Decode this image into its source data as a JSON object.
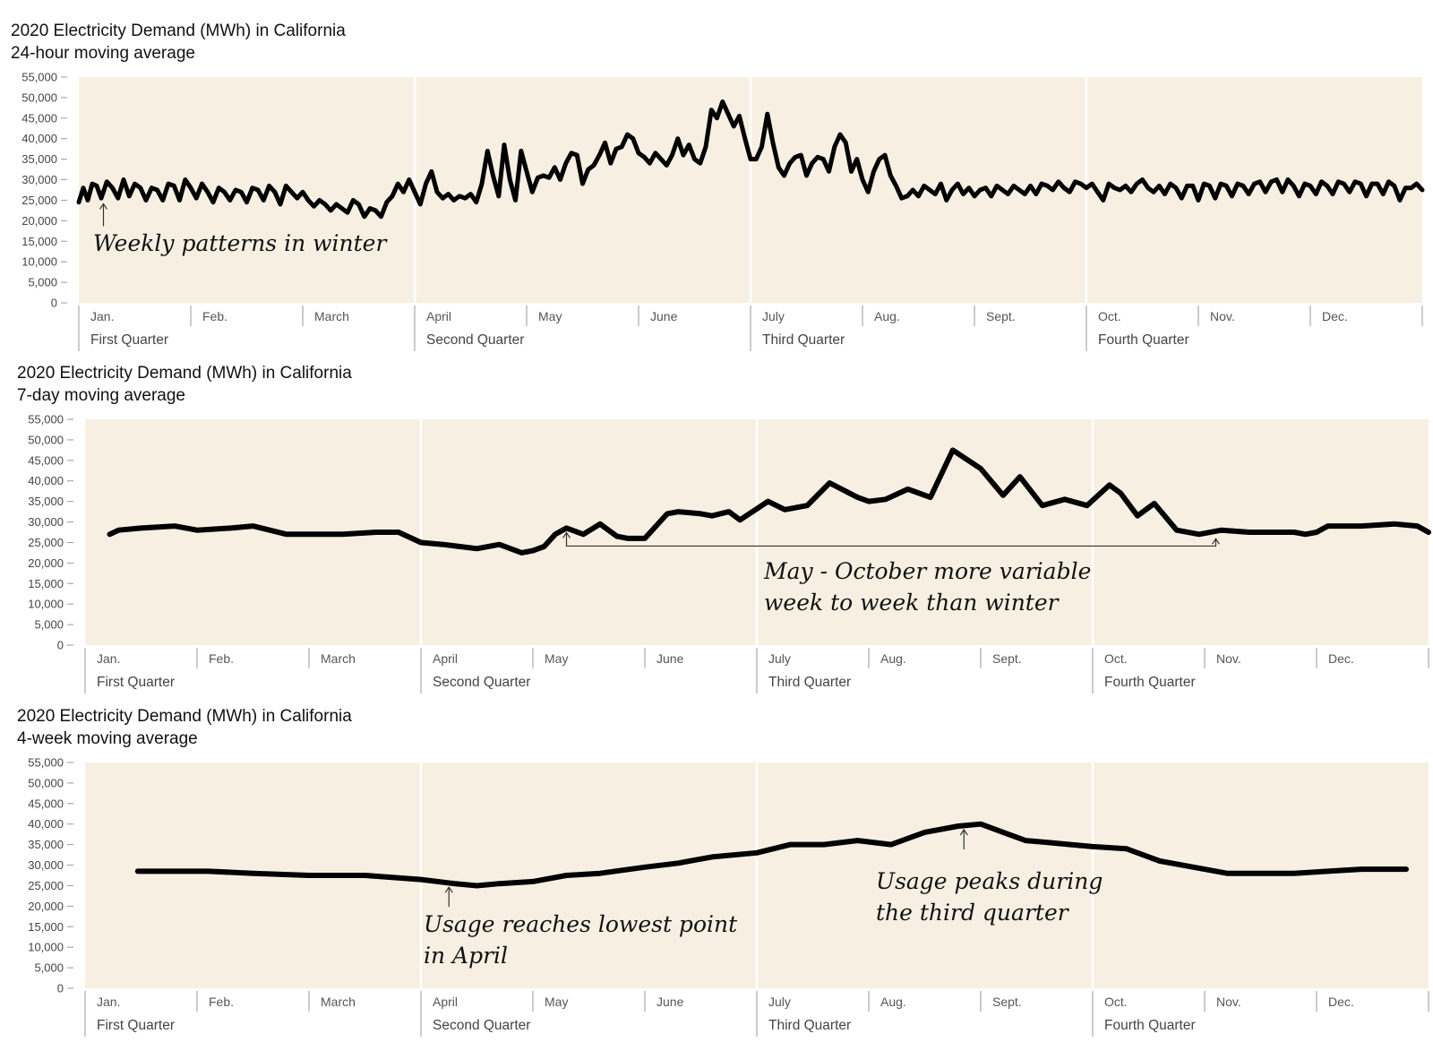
{
  "colors": {
    "panel_background": "#f7f0e2",
    "line": "#000000",
    "quarter_divider": "#ffffff",
    "axis_tick": "#999999"
  },
  "chart_data": [
    {
      "type": "line",
      "title": "2020 Electricity Demand (MWh) in California",
      "subtitle": "24-hour moving average",
      "xlabel": "",
      "ylabel": "",
      "x_unit": "month of year (1 = Jan. 1, 13 = end of Dec.)",
      "xlim": [
        1,
        13
      ],
      "ylim": [
        0,
        55000
      ],
      "y_ticks": [
        "0",
        "5,000",
        "10,000",
        "15,000",
        "20,000",
        "25,000",
        "30,000",
        "35,000",
        "40,000",
        "45,000",
        "50,000",
        "55,000"
      ],
      "month_labels": [
        "Jan.",
        "Feb.",
        "March",
        "April",
        "May",
        "June",
        "July",
        "Aug.",
        "Sept.",
        "Oct.",
        "Nov.",
        "Dec."
      ],
      "quarter_labels": [
        "First Quarter",
        "Second Quarter",
        "Third Quarter",
        "Fourth Quarter"
      ],
      "grid": false,
      "legend": "none",
      "series": [
        {
          "x": [
            1.0,
            1.04,
            1.08,
            1.12,
            1.16,
            1.2,
            1.25,
            1.3,
            1.35,
            1.4,
            1.45,
            1.5,
            1.55,
            1.6,
            1.65,
            1.7,
            1.75,
            1.8,
            1.85,
            1.9,
            1.95,
            2.0,
            2.05,
            2.1,
            2.15,
            2.2,
            2.25,
            2.3,
            2.35,
            2.4,
            2.45,
            2.5,
            2.55,
            2.6,
            2.65,
            2.7,
            2.75,
            2.8,
            2.85,
            2.9,
            2.95,
            3.0,
            3.05,
            3.1,
            3.15,
            3.2,
            3.25,
            3.3,
            3.35,
            3.4,
            3.45,
            3.5,
            3.55,
            3.6,
            3.65,
            3.7,
            3.75,
            3.8,
            3.85,
            3.9,
            3.95,
            4.0,
            4.05,
            4.1,
            4.15,
            4.2,
            4.25,
            4.3,
            4.35,
            4.4,
            4.45,
            4.5,
            4.55,
            4.6,
            4.65,
            4.7,
            4.75,
            4.8,
            4.85,
            4.9,
            4.95,
            5.0,
            5.05,
            5.1,
            5.15,
            5.2,
            5.25,
            5.3,
            5.35,
            5.4,
            5.45,
            5.5,
            5.55,
            5.6,
            5.65,
            5.7,
            5.75,
            5.8,
            5.85,
            5.9,
            5.95,
            6.0,
            6.05,
            6.1,
            6.15,
            6.2,
            6.25,
            6.3,
            6.35,
            6.4,
            6.45,
            6.5,
            6.55,
            6.6,
            6.65,
            6.7,
            6.75,
            6.8,
            6.85,
            6.9,
            6.95,
            7.0,
            7.05,
            7.1,
            7.15,
            7.2,
            7.25,
            7.3,
            7.35,
            7.4,
            7.45,
            7.5,
            7.55,
            7.6,
            7.65,
            7.7,
            7.75,
            7.8,
            7.85,
            7.9,
            7.95,
            8.0,
            8.05,
            8.1,
            8.15,
            8.2,
            8.25,
            8.3,
            8.35,
            8.4,
            8.45,
            8.5,
            8.55,
            8.6,
            8.65,
            8.7,
            8.75,
            8.8,
            8.85,
            8.9,
            8.95,
            9.0,
            9.05,
            9.1,
            9.15,
            9.2,
            9.25,
            9.3,
            9.35,
            9.4,
            9.45,
            9.5,
            9.55,
            9.6,
            9.65,
            9.7,
            9.75,
            9.8,
            9.85,
            9.9,
            9.95,
            10.0,
            10.05,
            10.1,
            10.15,
            10.2,
            10.25,
            10.3,
            10.35,
            10.4,
            10.45,
            10.5,
            10.55,
            10.6,
            10.65,
            10.7,
            10.75,
            10.8,
            10.85,
            10.9,
            10.95,
            11.0,
            11.05,
            11.1,
            11.15,
            11.2,
            11.25,
            11.3,
            11.35,
            11.4,
            11.45,
            11.5,
            11.55,
            11.6,
            11.65,
            11.7,
            11.75,
            11.8,
            11.85,
            11.9,
            11.95,
            12.0,
            12.05,
            12.1,
            12.15,
            12.2,
            12.25,
            12.3,
            12.35,
            12.4,
            12.45,
            12.5,
            12.55,
            12.6,
            12.65,
            12.7,
            12.75,
            12.8,
            12.85,
            12.9,
            12.95,
            13.0
          ],
          "values": [
            24500,
            28000,
            25000,
            29000,
            28500,
            25500,
            29500,
            28000,
            25500,
            30000,
            26000,
            29000,
            28000,
            25000,
            28000,
            27500,
            25000,
            29000,
            28500,
            25000,
            30000,
            28000,
            25500,
            29000,
            27000,
            24500,
            28000,
            27000,
            25000,
            27500,
            27000,
            24500,
            28000,
            27500,
            25000,
            28500,
            27000,
            24000,
            28500,
            27000,
            25500,
            27000,
            25000,
            23500,
            25000,
            24000,
            22500,
            24000,
            23000,
            22000,
            25000,
            24000,
            21000,
            23000,
            22500,
            21000,
            24500,
            26000,
            29000,
            27000,
            30000,
            27000,
            24000,
            29000,
            32000,
            27000,
            25500,
            26500,
            25000,
            26000,
            25500,
            26500,
            24500,
            29000,
            37000,
            31000,
            26000,
            38500,
            30000,
            25000,
            37000,
            32000,
            27000,
            30500,
            31000,
            30500,
            33000,
            30000,
            34000,
            36500,
            36000,
            29000,
            32500,
            33500,
            36000,
            39000,
            34000,
            37500,
            38000,
            41000,
            40000,
            36500,
            35500,
            34000,
            36500,
            35000,
            33500,
            36000,
            40000,
            36000,
            38500,
            35000,
            34000,
            38000,
            47000,
            45000,
            49000,
            46000,
            43000,
            45500,
            40000,
            35000,
            35000,
            38000,
            46000,
            39000,
            33000,
            31000,
            34000,
            35500,
            36000,
            31000,
            34000,
            35500,
            35000,
            32000,
            38000,
            41000,
            39000,
            32000,
            35000,
            30000,
            27000,
            32000,
            35000,
            36000,
            31000,
            28500,
            25500,
            26000,
            27500,
            26000,
            28500,
            27500,
            26500,
            29000,
            25000,
            27500,
            29000,
            26500,
            28000,
            26000,
            27500,
            28000,
            26000,
            28500,
            27500,
            26500,
            28500,
            27500,
            26500,
            28500,
            26500,
            29000,
            28500,
            27500,
            29500,
            28000,
            27000,
            29500,
            29000,
            28000,
            29000,
            27000,
            25000,
            29000,
            28000,
            27500,
            28500,
            27000,
            29000,
            30000,
            28000,
            27000,
            28500,
            26500,
            29000,
            28000,
            25500,
            28500,
            28500,
            25000,
            29000,
            28500,
            25500,
            29000,
            28500,
            26000,
            29000,
            28500,
            26500,
            29000,
            29500,
            27000,
            29500,
            30000,
            27000,
            30000,
            28500,
            26000,
            29000,
            28500,
            26500,
            29500,
            28500,
            26500,
            29500,
            29000,
            27000,
            29500,
            29000,
            26000,
            29000,
            29000,
            26500,
            29500,
            28500,
            25000,
            28000,
            28000,
            29000,
            27500
          ]
        }
      ],
      "annotations": [
        {
          "text": "Weekly patterns in winter",
          "points_to": [
            1.22,
            25000
          ]
        }
      ]
    },
    {
      "type": "line",
      "title": "2020 Electricity Demand (MWh) in California",
      "subtitle": "7-day moving average",
      "xlabel": "",
      "ylabel": "",
      "x_unit": "month of year (1 = Jan. 1, 13 = end of Dec.)",
      "xlim": [
        1,
        13
      ],
      "ylim": [
        0,
        55000
      ],
      "y_ticks": [
        "0",
        "5,000",
        "10,000",
        "15,000",
        "20,000",
        "25,000",
        "30,000",
        "35,000",
        "40,000",
        "45,000",
        "50,000",
        "55,000"
      ],
      "month_labels": [
        "Jan.",
        "Feb.",
        "March",
        "April",
        "May",
        "June",
        "July",
        "Aug.",
        "Sept.",
        "Oct.",
        "Nov.",
        "Dec."
      ],
      "quarter_labels": [
        "First Quarter",
        "Second Quarter",
        "Third Quarter",
        "Fourth Quarter"
      ],
      "grid": false,
      "legend": "none",
      "series": [
        {
          "x": [
            1.22,
            1.3,
            1.5,
            1.8,
            2.0,
            2.3,
            2.5,
            2.8,
            3.0,
            3.3,
            3.6,
            3.8,
            4.0,
            4.2,
            4.5,
            4.7,
            4.9,
            5.0,
            5.1,
            5.2,
            5.3,
            5.45,
            5.6,
            5.75,
            5.85,
            6.0,
            6.2,
            6.3,
            6.5,
            6.6,
            6.75,
            6.85,
            7.1,
            7.25,
            7.45,
            7.65,
            7.9,
            8.0,
            8.15,
            8.35,
            8.55,
            8.75,
            9.0,
            9.2,
            9.35,
            9.55,
            9.75,
            9.95,
            10.15,
            10.25,
            10.4,
            10.55,
            10.75,
            10.95,
            11.15,
            11.4,
            11.6,
            11.8,
            11.9,
            12.0,
            12.1,
            12.4,
            12.7,
            12.9,
            13.0
          ],
          "values": [
            27000,
            28000,
            28500,
            29000,
            28000,
            28500,
            29000,
            27000,
            27000,
            27000,
            27500,
            27500,
            25000,
            24500,
            23500,
            24500,
            22500,
            23000,
            24000,
            27000,
            28500,
            27000,
            29500,
            26500,
            26000,
            26000,
            32000,
            32500,
            32000,
            31500,
            32500,
            30500,
            35000,
            33000,
            34000,
            39500,
            36000,
            35000,
            35500,
            38000,
            36000,
            47500,
            43000,
            36500,
            41000,
            34000,
            35500,
            34000,
            39000,
            37000,
            31500,
            34500,
            28000,
            27000,
            28000,
            27500,
            27500,
            27500,
            27000,
            27500,
            29000,
            29000,
            29500,
            29000,
            27500
          ]
        }
      ],
      "annotations": [
        {
          "text": "May - October more variable week to week than winter",
          "points_to": [
            [
              5.3,
              28500
            ],
            [
              11.1,
              27000
            ]
          ]
        }
      ]
    },
    {
      "type": "line",
      "title": "2020 Electricity Demand (MWh) in California",
      "subtitle": "4-week moving average",
      "xlabel": "",
      "ylabel": "",
      "x_unit": "month of year (1 = Jan. 1, 13 = end of Dec.)",
      "xlim": [
        1,
        13
      ],
      "ylim": [
        0,
        55000
      ],
      "y_ticks": [
        "0",
        "5,000",
        "10,000",
        "15,000",
        "20,000",
        "25,000",
        "30,000",
        "35,000",
        "40,000",
        "45,000",
        "50,000",
        "55,000"
      ],
      "month_labels": [
        "Jan.",
        "Feb.",
        "March",
        "April",
        "May",
        "June",
        "July",
        "Aug.",
        "Sept.",
        "Oct.",
        "Nov.",
        "Dec."
      ],
      "quarter_labels": [
        "First Quarter",
        "Second Quarter",
        "Third Quarter",
        "Fourth Quarter"
      ],
      "grid": false,
      "legend": "none",
      "series": [
        {
          "x": [
            1.47,
            1.8,
            2.1,
            2.5,
            3.0,
            3.5,
            4.0,
            4.3,
            4.5,
            4.7,
            5.0,
            5.3,
            5.6,
            6.0,
            6.3,
            6.6,
            7.0,
            7.3,
            7.6,
            7.9,
            8.2,
            8.5,
            8.8,
            9.0,
            9.2,
            9.4,
            9.6,
            9.8,
            10.0,
            10.3,
            10.6,
            10.9,
            11.2,
            11.5,
            11.8,
            12.1,
            12.4,
            12.6,
            12.8
          ],
          "values": [
            28500,
            28500,
            28500,
            28000,
            27500,
            27500,
            26500,
            25500,
            25000,
            25500,
            26000,
            27500,
            28000,
            29500,
            30500,
            32000,
            33000,
            35000,
            35000,
            36000,
            35000,
            38000,
            39500,
            40000,
            38000,
            36000,
            35500,
            35000,
            34500,
            34000,
            31000,
            29500,
            28000,
            28000,
            28000,
            28500,
            29000,
            29000,
            29000
          ]
        }
      ],
      "annotations": [
        {
          "text": "Usage reaches lowest point in April",
          "points_to": [
            4.25,
            25500
          ]
        },
        {
          "text": "Usage peaks during the third quarter",
          "points_to": [
            8.85,
            39500
          ]
        }
      ]
    }
  ],
  "annotation_text": {
    "a1": "Weekly patterns in winter",
    "a2_line1": "May - October more variable",
    "a2_line2": "week to week than winter",
    "a3_line1": "Usage reaches lowest point",
    "a3_line2": "in April",
    "a4_line1": "Usage peaks during",
    "a4_line2": "the third quarter"
  }
}
